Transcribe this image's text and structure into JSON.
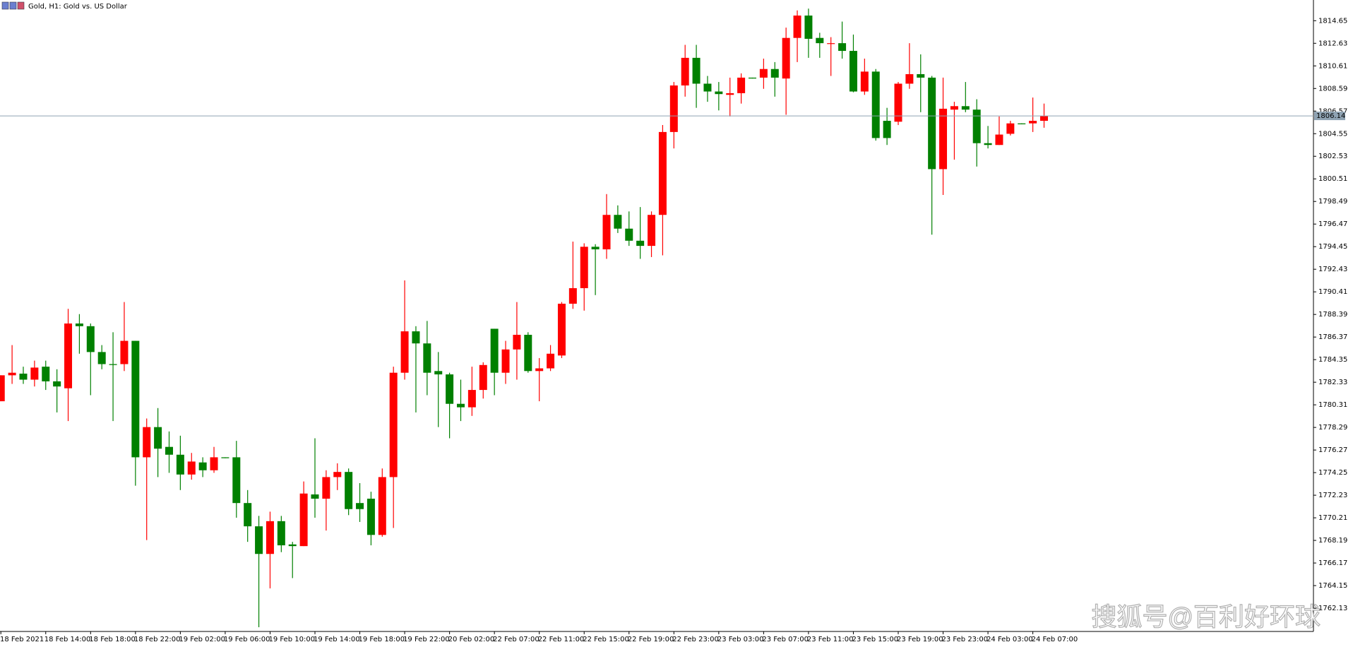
{
  "chart_data": {
    "type": "candlestick",
    "title": "Gold, H1:  Gold vs. US Dollar",
    "watermark": "搜狐号@百利好环球",
    "up_color": "#ff0000",
    "down_color": "#008000",
    "current_price": 1806.14,
    "ylim": [
      1760.05,
      1816.5
    ],
    "yticks": [
      1762.13,
      1764.15,
      1766.17,
      1768.19,
      1770.21,
      1772.23,
      1774.25,
      1776.27,
      1778.29,
      1780.31,
      1782.33,
      1784.35,
      1786.37,
      1788.39,
      1790.41,
      1792.43,
      1794.45,
      1796.47,
      1798.49,
      1800.51,
      1802.53,
      1804.55,
      1806.57,
      1808.59,
      1810.61,
      1812.63,
      1814.65
    ],
    "categories": [
      "18 Feb 2021",
      null,
      null,
      null,
      "18 Feb 14:00",
      null,
      null,
      null,
      "18 Feb 18:00",
      null,
      null,
      null,
      "18 Feb 22:00",
      null,
      null,
      null,
      "19 Feb 02:00",
      null,
      null,
      null,
      "19 Feb 06:00",
      null,
      null,
      null,
      "19 Feb 10:00",
      null,
      null,
      null,
      "19 Feb 14:00",
      null,
      null,
      null,
      "19 Feb 18:00",
      null,
      null,
      null,
      "19 Feb 22:00",
      null,
      null,
      null,
      "20 Feb 02:00",
      null,
      null,
      null,
      "22 Feb 07:00",
      null,
      null,
      null,
      "22 Feb 11:00",
      null,
      null,
      null,
      "22 Feb 15:00",
      null,
      null,
      null,
      "22 Feb 19:00",
      null,
      null,
      null,
      "22 Feb 23:00",
      null,
      null,
      null,
      "23 Feb 03:00",
      null,
      null,
      null,
      "23 Feb 07:00",
      null,
      null,
      null,
      "23 Feb 11:00",
      null,
      null,
      null,
      "23 Feb 15:00",
      null,
      null,
      null,
      "23 Feb 19:00",
      null,
      null,
      null,
      "23 Feb 23:00",
      null,
      null,
      null,
      "24 Feb 03:00",
      null,
      null,
      null,
      "24 Feb 07:00",
      null
    ],
    "ohlc": [
      [
        1780.63,
        1782.95,
        1780.63,
        1782.95
      ],
      [
        1782.95,
        1785.65,
        1782.18,
        1783.18
      ],
      [
        1783.1,
        1783.72,
        1782.18,
        1782.56
      ],
      [
        1782.56,
        1784.26,
        1781.95,
        1783.64
      ],
      [
        1783.72,
        1784.26,
        1781.64,
        1782.41
      ],
      [
        1782.41,
        1783.49,
        1779.63,
        1781.95
      ],
      [
        1781.79,
        1788.89,
        1778.86,
        1787.58
      ],
      [
        1787.58,
        1788.42,
        1784.88,
        1787.34
      ],
      [
        1787.34,
        1787.58,
        1781.17,
        1785.03
      ],
      [
        1785.03,
        1785.65,
        1783.49,
        1783.95
      ],
      [
        1783.95,
        1786.8,
        1778.86,
        1783.87
      ],
      [
        1783.95,
        1789.5,
        1783.33,
        1786.03
      ],
      [
        1786.03,
        1786.03,
        1773.08,
        1775.62
      ],
      [
        1775.62,
        1779.09,
        1768.22,
        1778.32
      ],
      [
        1778.32,
        1780.02,
        1773.85,
        1776.39
      ],
      [
        1776.55,
        1777.93,
        1774.23,
        1775.85
      ],
      [
        1775.85,
        1777.55,
        1772.69,
        1774.08
      ],
      [
        1774.08,
        1776.01,
        1773.62,
        1775.24
      ],
      [
        1775.16,
        1775.62,
        1773.85,
        1774.46
      ],
      [
        1774.46,
        1776.55,
        1774.23,
        1775.62
      ],
      [
        1775.62,
        1775.62,
        1775.54,
        1775.54
      ],
      [
        1775.62,
        1777.09,
        1770.22,
        1771.53
      ],
      [
        1771.53,
        1772.69,
        1768.06,
        1769.45
      ],
      [
        1769.45,
        1770.38,
        1760.43,
        1766.98
      ],
      [
        1766.98,
        1770.76,
        1763.9,
        1769.91
      ],
      [
        1769.91,
        1770.38,
        1767.14,
        1767.75
      ],
      [
        1767.83,
        1768.06,
        1764.82,
        1767.68
      ],
      [
        1767.68,
        1773.46,
        1767.68,
        1772.38
      ],
      [
        1772.3,
        1777.32,
        1770.22,
        1771.92
      ],
      [
        1771.92,
        1774.46,
        1769.07,
        1773.85
      ],
      [
        1773.85,
        1775.08,
        1772.69,
        1774.31
      ],
      [
        1774.31,
        1774.62,
        1770.45,
        1770.99
      ],
      [
        1771.53,
        1773.31,
        1769.84,
        1770.99
      ],
      [
        1771.92,
        1772.54,
        1767.75,
        1768.68
      ],
      [
        1768.68,
        1774.62,
        1768.52,
        1773.85
      ],
      [
        1773.85,
        1783.72,
        1769.3,
        1783.18
      ],
      [
        1783.18,
        1791.43,
        1782.56,
        1786.88
      ],
      [
        1786.88,
        1787.34,
        1779.63,
        1785.8
      ],
      [
        1785.8,
        1787.81,
        1781.17,
        1783.18
      ],
      [
        1783.33,
        1785.03,
        1778.32,
        1783.03
      ],
      [
        1783.03,
        1783.18,
        1777.32,
        1780.4
      ],
      [
        1780.4,
        1782.56,
        1778.86,
        1780.09
      ],
      [
        1780.09,
        1783.72,
        1779.32,
        1781.64
      ],
      [
        1781.64,
        1784.11,
        1780.87,
        1783.87
      ],
      [
        1787.11,
        1787.11,
        1781.17,
        1783.18
      ],
      [
        1783.18,
        1786.03,
        1782.18,
        1785.26
      ],
      [
        1785.26,
        1789.5,
        1782.56,
        1786.57
      ],
      [
        1786.57,
        1786.8,
        1783.18,
        1783.33
      ],
      [
        1783.33,
        1784.49,
        1780.63,
        1783.57
      ],
      [
        1783.57,
        1785.65,
        1783.33,
        1784.88
      ],
      [
        1784.72,
        1789.5,
        1784.49,
        1789.35
      ],
      [
        1789.35,
        1794.9,
        1788.89,
        1790.74
      ],
      [
        1790.74,
        1794.75,
        1788.73,
        1794.44
      ],
      [
        1794.44,
        1794.67,
        1790.12,
        1794.21
      ],
      [
        1794.21,
        1799.15,
        1793.36,
        1797.29
      ],
      [
        1797.29,
        1798.14,
        1795.67,
        1796.06
      ],
      [
        1796.06,
        1797.6,
        1794.52,
        1794.98
      ],
      [
        1794.98,
        1797.99,
        1793.36,
        1794.52
      ],
      [
        1794.52,
        1797.6,
        1793.52,
        1797.29
      ],
      [
        1797.29,
        1805.32,
        1793.67,
        1804.7
      ],
      [
        1804.7,
        1809.17,
        1803.23,
        1808.86
      ],
      [
        1808.86,
        1812.49,
        1807.86,
        1811.33
      ],
      [
        1811.33,
        1812.49,
        1806.86,
        1809.02
      ],
      [
        1809.02,
        1809.71,
        1807.4,
        1808.32
      ],
      [
        1808.32,
        1809.17,
        1806.63,
        1808.09
      ],
      [
        1808.02,
        1809.56,
        1806.09,
        1808.17
      ],
      [
        1808.17,
        1809.94,
        1807.24,
        1809.56
      ],
      [
        1809.56,
        1809.56,
        1809.48,
        1809.48
      ],
      [
        1809.56,
        1811.26,
        1808.56,
        1810.33
      ],
      [
        1810.33,
        1810.95,
        1807.86,
        1809.56
      ],
      [
        1809.48,
        1814.03,
        1806.24,
        1813.11
      ],
      [
        1813.11,
        1815.57,
        1810.95,
        1815.11
      ],
      [
        1815.11,
        1815.73,
        1811.33,
        1813.03
      ],
      [
        1813.11,
        1813.57,
        1811.33,
        1812.64
      ],
      [
        1812.57,
        1813.18,
        1809.71,
        1812.64
      ],
      [
        1812.64,
        1814.57,
        1811.26,
        1811.95
      ],
      [
        1811.95,
        1813.41,
        1808.25,
        1808.32
      ],
      [
        1808.32,
        1811.26,
        1808.02,
        1810.1
      ],
      [
        1810.1,
        1810.33,
        1803.93,
        1804.16
      ],
      [
        1805.7,
        1806.86,
        1803.54,
        1804.16
      ],
      [
        1805.62,
        1809.17,
        1805.32,
        1809.02
      ],
      [
        1809.02,
        1812.64,
        1808.56,
        1809.87
      ],
      [
        1809.87,
        1811.64,
        1806.47,
        1809.56
      ],
      [
        1809.56,
        1809.71,
        1795.52,
        1801.38
      ],
      [
        1801.38,
        1809.56,
        1799.07,
        1806.78
      ],
      [
        1806.7,
        1807.4,
        1802.23,
        1807.01
      ],
      [
        1807.01,
        1809.17,
        1806.47,
        1806.7
      ],
      [
        1806.7,
        1807.63,
        1801.61,
        1803.7
      ],
      [
        1803.7,
        1805.24,
        1803.23,
        1803.54
      ],
      [
        1803.54,
        1806.09,
        1803.54,
        1804.47
      ],
      [
        1804.54,
        1805.7,
        1804.39,
        1805.47
      ],
      [
        1805.47,
        1805.47,
        1805.39,
        1805.39
      ],
      [
        1805.47,
        1807.78,
        1804.7,
        1805.7
      ],
      [
        1805.7,
        1807.24,
        1805.08,
        1806.14
      ]
    ]
  }
}
